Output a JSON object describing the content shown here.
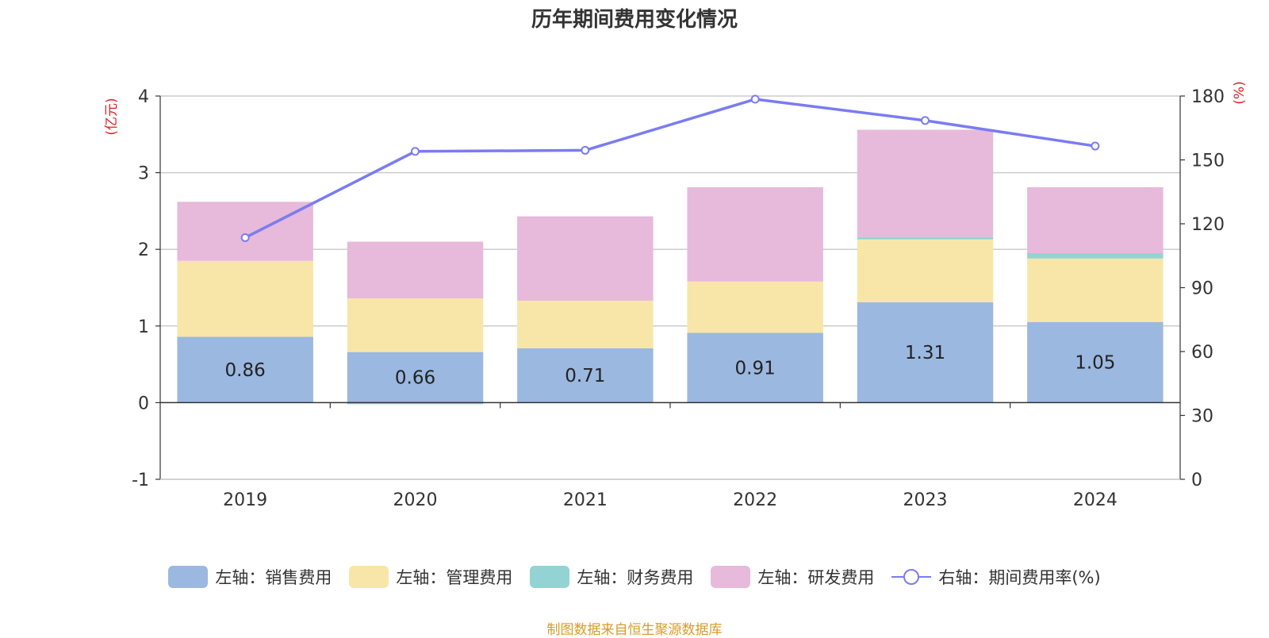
{
  "chart_data": {
    "type": "bar",
    "title": "历年期间费用变化情况",
    "categories": [
      "2019",
      "2020",
      "2021",
      "2022",
      "2023",
      "2024"
    ],
    "left_axis": {
      "unit_label": "(亿元)",
      "ylim": [
        -1,
        4
      ],
      "ticks": [
        "-1",
        "0",
        "1",
        "2",
        "3",
        "4"
      ]
    },
    "right_axis": {
      "unit_label": "(%)",
      "ylim": [
        0,
        180
      ],
      "ticks": [
        "0",
        "30",
        "60",
        "90",
        "120",
        "150",
        "180"
      ]
    },
    "series": [
      {
        "name": "左轴：销售费用",
        "type": "bar",
        "axis": "left",
        "color": "#9bb8e0",
        "values": [
          0.86,
          0.66,
          0.71,
          0.91,
          1.31,
          1.05
        ],
        "show_labels": true
      },
      {
        "name": "左轴：管理费用",
        "type": "bar",
        "axis": "left",
        "color": "#f7e6a8",
        "values": [
          0.99,
          0.7,
          0.62,
          0.67,
          0.82,
          0.83
        ],
        "show_labels": false
      },
      {
        "name": "左轴：财务费用",
        "type": "bar",
        "axis": "left",
        "color": "#93d3d3",
        "values": [
          0.0,
          -0.02,
          0.0,
          0.0,
          0.03,
          0.07
        ],
        "show_labels": false
      },
      {
        "name": "左轴：研发费用",
        "type": "bar",
        "axis": "left",
        "color": "#e7b9da",
        "values": [
          0.77,
          0.74,
          1.1,
          1.23,
          1.4,
          0.86
        ],
        "show_labels": false
      },
      {
        "name": "右轴：期间费用率(%)",
        "type": "line",
        "axis": "right",
        "color": "#7b7cf0",
        "values": [
          113.5,
          154.0,
          154.5,
          178.5,
          168.5,
          156.5
        ]
      }
    ],
    "grid": true,
    "legend_position": "bottom"
  },
  "source": "制图数据来自恒生聚源数据库"
}
